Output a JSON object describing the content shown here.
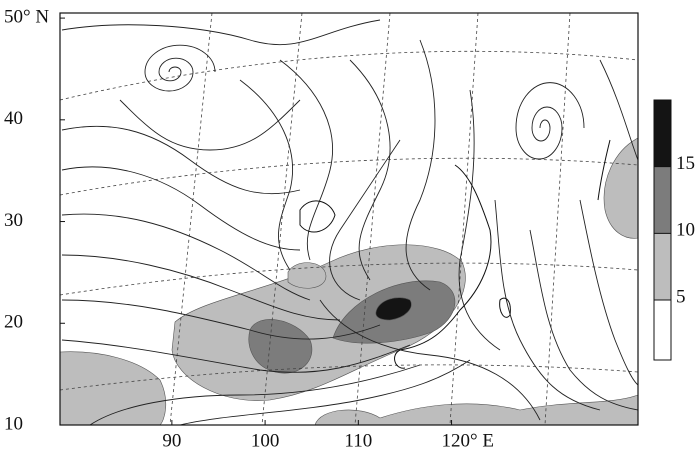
{
  "map": {
    "lat_ticks": [
      {
        "value": 50,
        "label": "50° N"
      },
      40,
      30,
      20,
      10
    ],
    "lon_ticks": [
      90,
      100,
      110,
      {
        "value": 120,
        "label": "120° E"
      }
    ],
    "lat_lim": [
      10,
      50.5
    ],
    "lon_lim": [
      78,
      140
    ],
    "colorbar": {
      "ticks": [
        5,
        10,
        15
      ],
      "lim": [
        0.5,
        20
      ],
      "colors": [
        "#ffffff",
        "#bdbdbd",
        "#7c7c7c",
        "#141414"
      ]
    }
  }
}
